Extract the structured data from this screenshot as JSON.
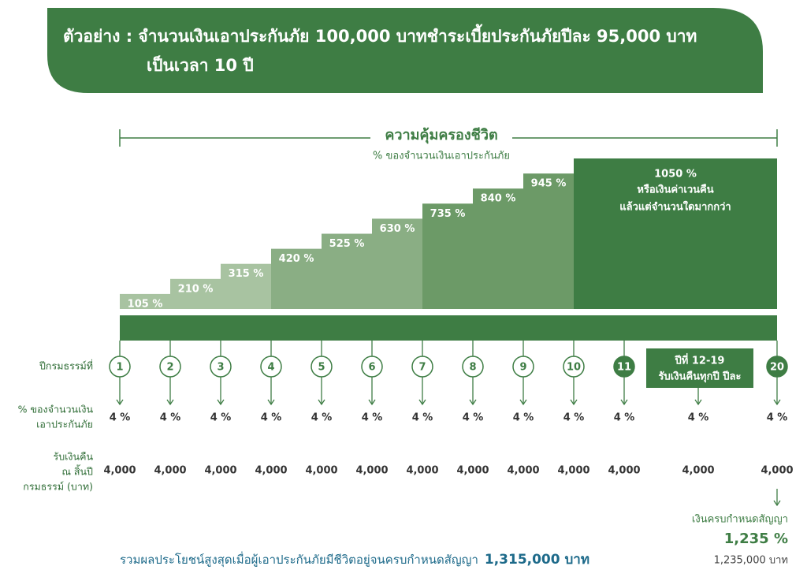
{
  "header": {
    "line1": "ตัวอย่าง : จำนวนเงินเอาประกันภัย 100,000 บาทชำระเบี้ยประกันภัยปีละ 95,000 บาท",
    "line2": "เป็นเวลา 10 ปี"
  },
  "coverage": {
    "title": "ความคุ้มครองชีวิต",
    "subtitle": "% ของจำนวนเงินเอาประกันภัย",
    "values": [
      105,
      210,
      315,
      420,
      525,
      630,
      735,
      840,
      945,
      1050
    ],
    "value_labels": [
      "105 %",
      "210 %",
      "315 %",
      "420 %",
      "525 %",
      "630 %",
      "735 %",
      "840 %",
      "945 %",
      "1050 %"
    ],
    "final_note": [
      "หรือเงินค่าเวนคืน",
      "แล้วแต่จำนวนใดมากกว่า"
    ]
  },
  "rows": {
    "year_label": "ปีกรมธรรม์ที่",
    "percent_label": [
      "% ของจำนวนเงิน",
      "เอาประกันภัย"
    ],
    "amount_label": [
      "รับเงินคืน",
      "ณ สิ้นปี",
      "กรมธรรม์ (บาท)"
    ]
  },
  "years": [
    "1",
    "2",
    "3",
    "4",
    "5",
    "6",
    "7",
    "8",
    "9",
    "10",
    "11",
    "20"
  ],
  "range_box": [
    "ปีที่ 12-19",
    "รับเงินคืนทุกปี ปีละ"
  ],
  "percents": [
    "4 %",
    "4 %",
    "4 %",
    "4 %",
    "4 %",
    "4 %",
    "4 %",
    "4 %",
    "4 %",
    "4 %",
    "4 %",
    "4 %",
    "4 %"
  ],
  "amounts": [
    "4,000",
    "4,000",
    "4,000",
    "4,000",
    "4,000",
    "4,000",
    "4,000",
    "4,000",
    "4,000",
    "4,000",
    "4,000",
    "4,000",
    "4,000"
  ],
  "maturity": {
    "label": "เงินครบกำหนดสัญญา",
    "percent": "1,235 %",
    "amount": "1,235,000 บาท"
  },
  "footer": {
    "text": "รวมผลประโยชน์สูงสุดเมื่อผู้เอาประกันภัยมีชีวิตอยู่จนครบกำหนดสัญญา",
    "total": "1,315,000 บาท"
  }
}
